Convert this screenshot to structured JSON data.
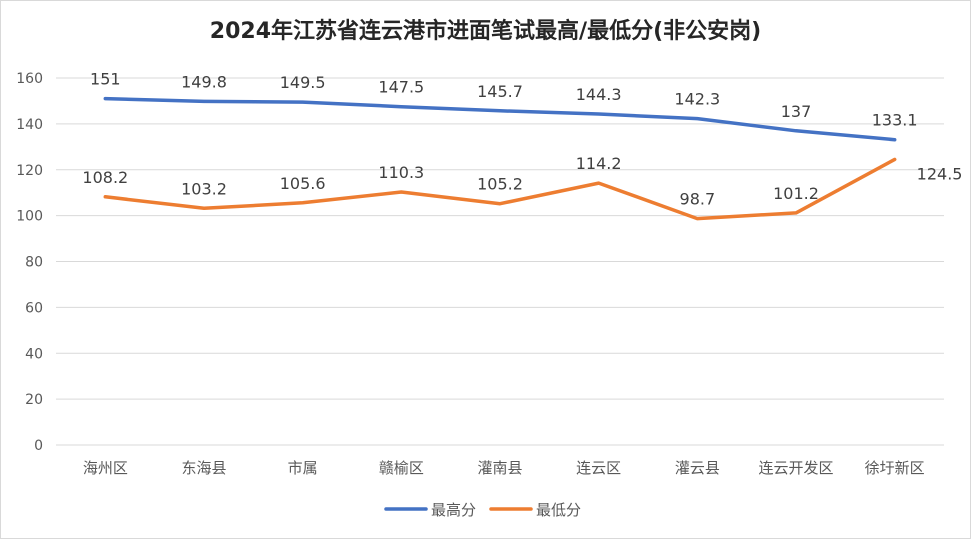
{
  "chart_data": {
    "type": "line",
    "title": "2024年江苏省连云港市进面笔试最高/最低分(非公安岗)",
    "categories": [
      "海州区",
      "东海县",
      "市属",
      "赣榆区",
      "灌南县",
      "连云区",
      "灌云县",
      "连云开发区",
      "徐圩新区"
    ],
    "series": [
      {
        "name": "最高分",
        "color": "#4472C4",
        "values": [
          151,
          149.8,
          149.5,
          147.5,
          145.7,
          144.3,
          142.3,
          137,
          133.1
        ],
        "labels": [
          "151",
          "149.8",
          "149.5",
          "147.5",
          "145.7",
          "144.3",
          "142.3",
          "137",
          "133.1"
        ]
      },
      {
        "name": "最低分",
        "color": "#ED7D31",
        "values": [
          108.2,
          103.2,
          105.6,
          110.3,
          105.2,
          114.2,
          98.7,
          101.2,
          124.5
        ],
        "labels": [
          "108.2",
          "103.2",
          "105.6",
          "110.3",
          "105.2",
          "114.2",
          "98.7",
          "101.2",
          "124.5"
        ]
      }
    ],
    "ylim": [
      0,
      160
    ],
    "yticks": [
      0,
      20,
      40,
      60,
      80,
      100,
      120,
      140,
      160
    ],
    "ytick_labels": [
      "0",
      "20",
      "40",
      "60",
      "80",
      "100",
      "120",
      "140",
      "160"
    ],
    "grid": true,
    "legend_position": "bottom"
  }
}
